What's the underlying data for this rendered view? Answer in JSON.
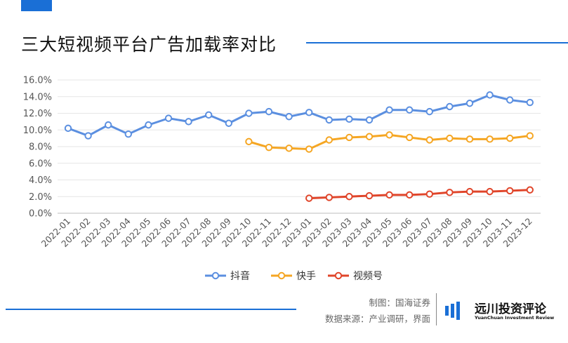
{
  "header": {
    "title": "三大短视频平台广告加载率对比"
  },
  "chart_data": {
    "type": "line",
    "title": "三大短视频平台广告加载率对比",
    "categories": [
      "2022-01",
      "2022-02",
      "2022-03",
      "2022-04",
      "2022-05",
      "2022-06",
      "2022-07",
      "2022-08",
      "2022-09",
      "2022-10",
      "2022-11",
      "2022-12",
      "2023-01",
      "2023-02",
      "2023-03",
      "2023-04",
      "2023-05",
      "2023-06",
      "2023-07",
      "2023-08",
      "2023-09",
      "2023-10",
      "2023-11",
      "2023-12"
    ],
    "yticks": [
      "0.0%",
      "2.0%",
      "4.0%",
      "6.0%",
      "8.0%",
      "10.0%",
      "12.0%",
      "14.0%",
      "16.0%"
    ],
    "ylim": [
      0,
      16
    ],
    "grid": true,
    "legend_position": "bottom",
    "series": [
      {
        "name": "抖音",
        "color": "#5b8fe0",
        "values": [
          10.2,
          9.3,
          10.6,
          9.5,
          10.6,
          11.4,
          11.0,
          11.8,
          10.8,
          12.0,
          12.2,
          11.6,
          12.1,
          11.2,
          11.3,
          11.2,
          12.4,
          12.4,
          12.2,
          12.8,
          13.2,
          14.2,
          13.6,
          13.3
        ]
      },
      {
        "name": "快手",
        "color": "#f5a623",
        "values": [
          null,
          null,
          null,
          null,
          null,
          null,
          null,
          null,
          null,
          8.6,
          7.9,
          7.8,
          7.7,
          8.8,
          9.1,
          9.2,
          9.4,
          9.1,
          8.8,
          9.0,
          8.9,
          8.9,
          9.0,
          9.3
        ]
      },
      {
        "name": "视频号",
        "color": "#e0452a",
        "values": [
          null,
          null,
          null,
          null,
          null,
          null,
          null,
          null,
          null,
          null,
          null,
          null,
          1.8,
          1.9,
          2.0,
          2.1,
          2.2,
          2.2,
          2.3,
          2.5,
          2.6,
          2.6,
          2.7,
          2.8
        ]
      }
    ]
  },
  "footer": {
    "credit_line1": "制图：国海证券",
    "credit_line2": "数据来源：产业调研，界面",
    "logo_name": "远川投资评论",
    "logo_sub": "YuanChuan Investment Review"
  }
}
